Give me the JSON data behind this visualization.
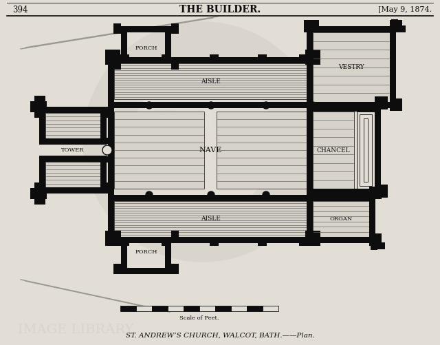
{
  "bg_color": "#e2ddd5",
  "wall_dark": "#0d0d0d",
  "pew_line": "#666666",
  "pew_bg": "#d8d3ca",
  "header_text": "THE BUILDER.",
  "page_num": "394",
  "date_text": "[May 9, 1874.",
  "caption": "ST. ANDREW’S CHURCH, WALCOT, BATH.——Plan.",
  "scale_label": "Scale of Feet.",
  "label_tower": "TOWER",
  "label_nave": "NAVE",
  "label_aisle_n": "AISLE",
  "label_aisle_s": "AISLE",
  "label_chancel": "CHANCEL",
  "label_organ": "ORGAN",
  "label_vestry": "VESTRY",
  "label_porch_n": "PORCH",
  "label_porch_s": "PORCH",
  "road_color": "#999990",
  "wm_ring_color": "#c8c4bc"
}
